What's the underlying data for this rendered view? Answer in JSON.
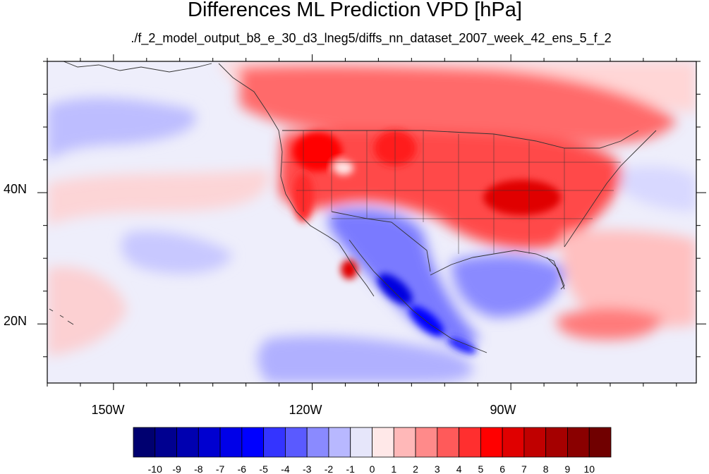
{
  "figure": {
    "title": "Differences ML Prediction VPD [hPa]",
    "subtitle": "./f_2_model_output_b8_e_30_d3_lneg5/diffs_nn_dataset_2007_week_42_ens_5_f_2"
  },
  "map": {
    "projection": "cylindrical-equidistant",
    "lon_range": [
      -160,
      -62
    ],
    "lat_range": [
      11,
      60
    ],
    "x_ticks": [
      {
        "lon": -150,
        "label": "150W"
      },
      {
        "lon": -120,
        "label": "120W"
      },
      {
        "lon": -90,
        "label": "90W"
      }
    ],
    "y_ticks": [
      {
        "lat": 20,
        "label": "20N"
      },
      {
        "lat": 40,
        "label": "40N"
      }
    ],
    "minor_tick_step_deg": 5
  },
  "colorbar": {
    "levels": [
      "-10",
      "-9",
      "-8",
      "-7",
      "-6",
      "-5",
      "-4",
      "-3",
      "-2",
      "-1",
      "0",
      "1",
      "2",
      "3",
      "4",
      "5",
      "6",
      "7",
      "8",
      "9",
      "10"
    ],
    "colors": [
      "#000070",
      "#000090",
      "#0000b0",
      "#0000d0",
      "#0000e8",
      "#0000ff",
      "#3434ff",
      "#5a5aff",
      "#8a8aff",
      "#b8b8ff",
      "#e6e6fa",
      "#ffe8e8",
      "#ffb8b8",
      "#ff8a8a",
      "#ff5a5a",
      "#ff2f2f",
      "#ff0000",
      "#e00000",
      "#c00000",
      "#a50000",
      "#8a0000",
      "#700000"
    ]
  },
  "colors": {
    "ocean_base": "#eeeefb",
    "land_warm": "#ff5a5a",
    "coastline": "#333333"
  }
}
